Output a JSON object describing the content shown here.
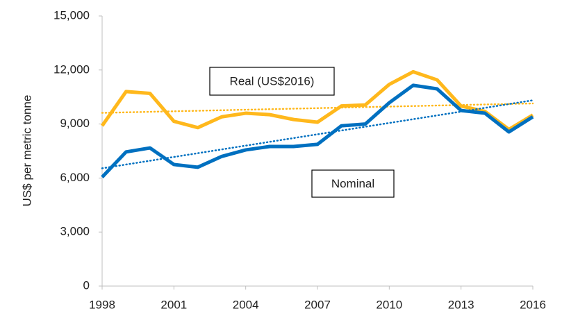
{
  "chart_data": {
    "type": "line",
    "y_label": "US$ per metric tonne",
    "x": [
      1998,
      1999,
      2000,
      2001,
      2002,
      2003,
      2004,
      2005,
      2006,
      2007,
      2008,
      2009,
      2010,
      2011,
      2012,
      2013,
      2014,
      2015,
      2016
    ],
    "series": [
      {
        "name": "Real (US$2016)",
        "color": "#FFB81C",
        "values": [
          8900,
          10800,
          10700,
          9150,
          8800,
          9400,
          9600,
          9520,
          9250,
          9100,
          10000,
          10060,
          11200,
          11900,
          11450,
          10000,
          9700,
          8700,
          9500
        ]
      },
      {
        "name": "Nominal",
        "color": "#0070C0",
        "values": [
          6050,
          7450,
          7670,
          6750,
          6600,
          7200,
          7560,
          7750,
          7750,
          7870,
          8900,
          9000,
          10180,
          11150,
          10950,
          9750,
          9600,
          8560,
          9400
        ]
      }
    ],
    "trendline": true,
    "xlim": [
      1998,
      2016
    ],
    "xticks": [
      1998,
      2001,
      2004,
      2007,
      2010,
      2013,
      2016
    ],
    "ylim": [
      0,
      15000
    ],
    "yticks": [
      0,
      {
        "value": 3000,
        "label": "3,000"
      },
      {
        "value": 6000,
        "label": "6,000"
      },
      {
        "value": 9000,
        "label": "9,000"
      },
      {
        "value": 12000,
        "label": "12,000"
      },
      {
        "value": 15000,
        "label": "15,000"
      }
    ],
    "grid": false
  }
}
